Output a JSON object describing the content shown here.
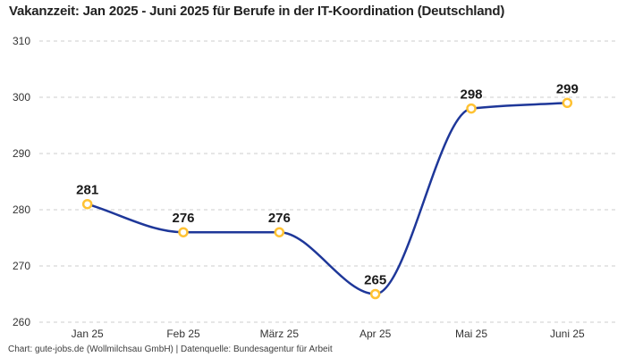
{
  "title": "Vakanzzeit: Jan 2025 - Juni 2025 für Berufe in der IT-Koordination (Deutschland)",
  "footer": "Chart: gute-jobs.de (Wollmilchsau GmbH) | Datenquelle: Bundesagentur für Arbeit",
  "chart_data": {
    "type": "line",
    "title": "Vakanzzeit: Jan 2025 - Juni 2025 für Berufe in der IT-Koordination (Deutschland)",
    "categories": [
      "Jan 25",
      "Feb 25",
      "März 25",
      "Apr 25",
      "Mai 25",
      "Juni 25"
    ],
    "values": [
      281,
      276,
      276,
      265,
      298,
      299
    ],
    "data_labels": [
      "281",
      "276",
      "276",
      "265",
      "298",
      "299"
    ],
    "xlabel": "",
    "ylabel": "",
    "ylim": [
      260,
      310
    ],
    "yticks": [
      260,
      270,
      280,
      290,
      300,
      310
    ],
    "grid": "horizontal-dashed",
    "legend": "none",
    "smoothing": "monotone",
    "colors": {
      "line": "#1e3799",
      "marker_stroke": "#ffc233",
      "marker_fill": "#ffffff",
      "grid": "#cccccc",
      "data_label": "#1a1a1a",
      "tick_label": "#333333",
      "title": "#222222",
      "footer": "#3d3d3d"
    }
  }
}
